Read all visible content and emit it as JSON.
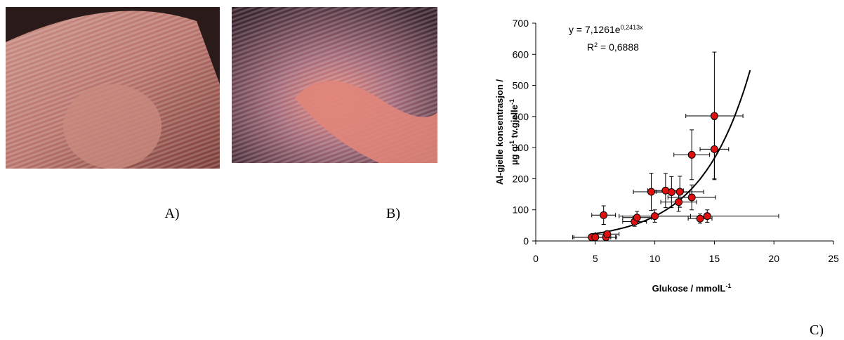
{
  "panels": {
    "a": "A)",
    "b": "B)",
    "c": "C)"
  },
  "chart_data": {
    "type": "scatter",
    "x_label": [
      "Glukose / mmolL",
      "-1"
    ],
    "y_label": {
      "line1": "Al-gjelle konsentrasjon /",
      "line2": [
        "µg g",
        "-1",
        " tv.gjelle",
        "-1"
      ]
    },
    "xlim": [
      0,
      25
    ],
    "xticks": [
      0,
      5,
      10,
      15,
      20,
      25
    ],
    "ylim": [
      0,
      700
    ],
    "yticks": [
      0,
      100,
      200,
      300,
      400,
      500,
      600,
      700
    ],
    "series": [
      {
        "color": "#e01010",
        "x": [
          4.7,
          5.0,
          5.7,
          5.9,
          6.0,
          8.3,
          8.5,
          9.7,
          10.0,
          10.9,
          11.4,
          12.0,
          12.1,
          13.1,
          13.1,
          13.8,
          14.4,
          15.0,
          15.0
        ],
        "values": [
          12,
          12,
          83,
          12,
          22,
          62,
          75,
          158,
          80,
          162,
          157,
          125,
          158,
          277,
          140,
          72,
          80,
          402,
          295
        ],
        "x_error": [
          1.6,
          1.8,
          1.0,
          0.8,
          1.0,
          1.0,
          1.2,
          1.5,
          3.0,
          1.5,
          1.5,
          1.5,
          2.0,
          1.5,
          2.0,
          1.0,
          6.0,
          2.4,
          1.2
        ],
        "y_error": [
          5,
          5,
          30,
          8,
          10,
          15,
          20,
          60,
          20,
          55,
          50,
          30,
          50,
          80,
          40,
          15,
          20,
          205,
          95
        ]
      }
    ],
    "trendline": {
      "type": "exponential",
      "a": 7.1261,
      "b": 0.2413,
      "x_range": [
        4.6,
        18
      ],
      "equation": "y = 7,1261e",
      "exponent": "0,2413x",
      "r_squared": [
        "R",
        "2",
        " = 0,6888"
      ]
    }
  }
}
